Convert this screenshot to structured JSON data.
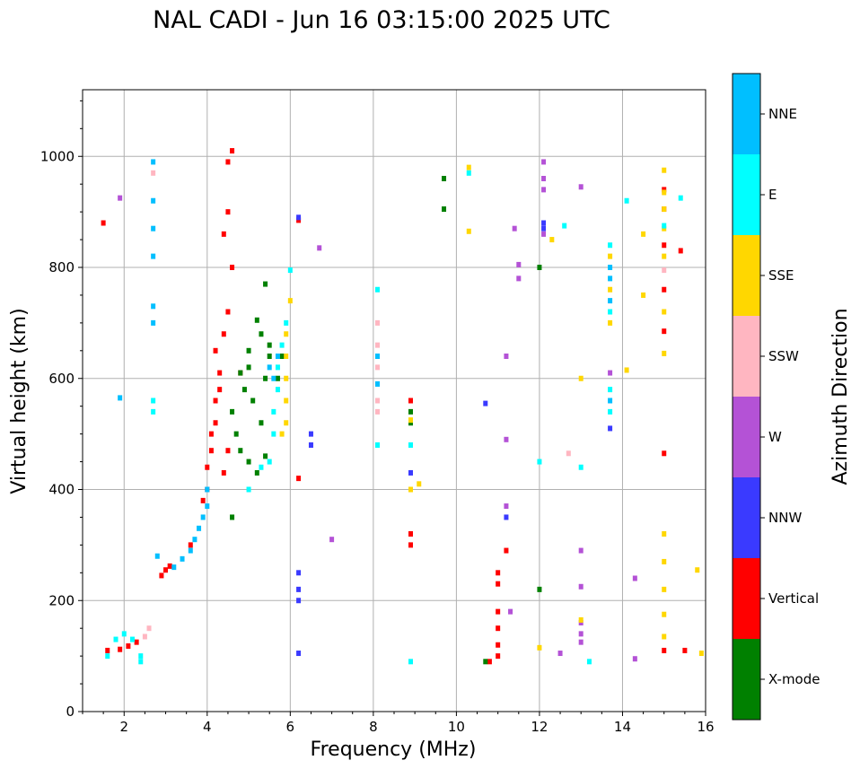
{
  "chart_data": {
    "type": "scatter",
    "title": "NAL CADI - Jun 16 03:15:00 2025 UTC",
    "xlabel": "Frequency (MHz)",
    "ylabel": "Virtual height (km)",
    "xlim": [
      1,
      16
    ],
    "ylim": [
      0,
      1120
    ],
    "xticks": [
      2,
      4,
      6,
      8,
      10,
      12,
      14,
      16
    ],
    "yticks": [
      0,
      200,
      400,
      600,
      800,
      1000
    ],
    "grid": true,
    "colorbar": {
      "title": "Azimuth Direction",
      "categories": [
        {
          "name": "X-mode",
          "color": "#008000"
        },
        {
          "name": "Vertical",
          "color": "#ff0000"
        },
        {
          "name": "NNW",
          "color": "#3a3aff"
        },
        {
          "name": "W",
          "color": "#b452d6"
        },
        {
          "name": "SSW",
          "color": "#ffb6c1"
        },
        {
          "name": "SSE",
          "color": "#ffd700"
        },
        {
          "name": "E",
          "color": "#00ffff"
        },
        {
          "name": "NNE",
          "color": "#00bfff"
        }
      ]
    },
    "series": [
      {
        "name": "Vertical",
        "points": [
          [
            1.6,
            110
          ],
          [
            1.9,
            112
          ],
          [
            2.1,
            118
          ],
          [
            2.3,
            125
          ],
          [
            2.9,
            245
          ],
          [
            3.0,
            255
          ],
          [
            3.1,
            262
          ],
          [
            3.6,
            300
          ],
          [
            3.9,
            380
          ],
          [
            4.0,
            400
          ],
          [
            4.0,
            440
          ],
          [
            4.1,
            470
          ],
          [
            4.1,
            500
          ],
          [
            4.2,
            520
          ],
          [
            4.2,
            560
          ],
          [
            4.3,
            580
          ],
          [
            4.3,
            610
          ],
          [
            4.2,
            650
          ],
          [
            4.4,
            680
          ],
          [
            4.5,
            720
          ],
          [
            4.6,
            800
          ],
          [
            4.4,
            860
          ],
          [
            4.5,
            900
          ],
          [
            4.5,
            990
          ],
          [
            4.6,
            1010
          ],
          [
            4.4,
            430
          ],
          [
            4.5,
            470
          ],
          [
            4.8,
            610
          ],
          [
            6.2,
            420
          ],
          [
            6.2,
            885
          ],
          [
            8.9,
            300
          ],
          [
            8.9,
            320
          ],
          [
            8.9,
            560
          ],
          [
            11.0,
            100
          ],
          [
            11.0,
            120
          ],
          [
            11.0,
            150
          ],
          [
            11.0,
            180
          ],
          [
            11.0,
            230
          ],
          [
            11.0,
            250
          ],
          [
            11.2,
            290
          ],
          [
            15.0,
            110
          ],
          [
            15.5,
            110
          ],
          [
            15.0,
            465
          ],
          [
            15.0,
            685
          ],
          [
            15.0,
            760
          ],
          [
            15.0,
            840
          ],
          [
            15.0,
            905
          ],
          [
            15.0,
            940
          ],
          [
            15.4,
            830
          ],
          [
            1.5,
            880
          ],
          [
            10.8,
            90
          ]
        ]
      },
      {
        "name": "X-mode",
        "points": [
          [
            4.6,
            540
          ],
          [
            4.7,
            500
          ],
          [
            4.8,
            470
          ],
          [
            5.0,
            450
          ],
          [
            5.2,
            430
          ],
          [
            5.4,
            460
          ],
          [
            4.9,
            580
          ],
          [
            5.0,
            620
          ],
          [
            5.1,
            560
          ],
          [
            5.3,
            520
          ],
          [
            5.4,
            600
          ],
          [
            5.5,
            640
          ],
          [
            5.3,
            680
          ],
          [
            5.7,
            600
          ],
          [
            5.5,
            660
          ],
          [
            5.8,
            640
          ],
          [
            4.6,
            350
          ],
          [
            4.8,
            610
          ],
          [
            5.0,
            650
          ],
          [
            5.2,
            705
          ],
          [
            5.4,
            770
          ],
          [
            8.9,
            540
          ],
          [
            8.9,
            520
          ],
          [
            9.7,
            960
          ],
          [
            9.7,
            905
          ],
          [
            10.7,
            90
          ],
          [
            12.0,
            800
          ],
          [
            12.0,
            220
          ]
        ]
      },
      {
        "name": "NNW",
        "points": [
          [
            6.2,
            890
          ],
          [
            6.2,
            250
          ],
          [
            6.2,
            220
          ],
          [
            6.2,
            200
          ],
          [
            6.2,
            105
          ],
          [
            6.5,
            500
          ],
          [
            6.5,
            480
          ],
          [
            8.9,
            480
          ],
          [
            8.9,
            430
          ],
          [
            10.7,
            555
          ],
          [
            11.2,
            350
          ],
          [
            12.1,
            870
          ],
          [
            12.1,
            880
          ],
          [
            13.7,
            510
          ]
        ]
      },
      {
        "name": "W",
        "points": [
          [
            1.9,
            925
          ],
          [
            12.1,
            990
          ],
          [
            12.1,
            960
          ],
          [
            12.1,
            940
          ],
          [
            12.1,
            860
          ],
          [
            13.0,
            945
          ],
          [
            13.0,
            290
          ],
          [
            13.0,
            225
          ],
          [
            13.0,
            160
          ],
          [
            13.0,
            140
          ],
          [
            13.0,
            125
          ],
          [
            13.7,
            610
          ],
          [
            11.2,
            640
          ],
          [
            11.2,
            490
          ],
          [
            11.2,
            370
          ],
          [
            11.3,
            180
          ],
          [
            12.5,
            105
          ],
          [
            14.3,
            240
          ],
          [
            14.3,
            95
          ],
          [
            6.7,
            835
          ],
          [
            7.0,
            310
          ],
          [
            11.5,
            780
          ],
          [
            11.5,
            805
          ],
          [
            11.4,
            870
          ]
        ]
      },
      {
        "name": "SSW",
        "points": [
          [
            2.5,
            135
          ],
          [
            2.6,
            150
          ],
          [
            2.7,
            970
          ],
          [
            8.1,
            700
          ],
          [
            8.1,
            660
          ],
          [
            8.1,
            620
          ],
          [
            8.1,
            560
          ],
          [
            8.1,
            540
          ],
          [
            12.7,
            465
          ],
          [
            15.0,
            795
          ]
        ]
      },
      {
        "name": "SSE",
        "points": [
          [
            5.9,
            680
          ],
          [
            5.9,
            640
          ],
          [
            5.9,
            600
          ],
          [
            5.9,
            560
          ],
          [
            5.9,
            520
          ],
          [
            6.0,
            740
          ],
          [
            5.8,
            500
          ],
          [
            8.9,
            400
          ],
          [
            8.9,
            525
          ],
          [
            9.1,
            410
          ],
          [
            10.3,
            980
          ],
          [
            10.3,
            865
          ],
          [
            13.0,
            600
          ],
          [
            13.0,
            165
          ],
          [
            13.7,
            820
          ],
          [
            13.7,
            760
          ],
          [
            13.7,
            700
          ],
          [
            14.1,
            615
          ],
          [
            14.5,
            860
          ],
          [
            14.5,
            750
          ],
          [
            15.0,
            975
          ],
          [
            15.0,
            935
          ],
          [
            15.0,
            905
          ],
          [
            15.0,
            870
          ],
          [
            15.0,
            820
          ],
          [
            15.0,
            720
          ],
          [
            15.0,
            645
          ],
          [
            15.0,
            320
          ],
          [
            15.0,
            270
          ],
          [
            15.0,
            220
          ],
          [
            15.0,
            175
          ],
          [
            15.0,
            135
          ],
          [
            15.8,
            255
          ],
          [
            15.9,
            105
          ],
          [
            12.3,
            850
          ],
          [
            12.0,
            115
          ]
        ]
      },
      {
        "name": "E",
        "points": [
          [
            1.6,
            100
          ],
          [
            1.8,
            130
          ],
          [
            2.0,
            140
          ],
          [
            2.2,
            130
          ],
          [
            2.4,
            100
          ],
          [
            2.7,
            540
          ],
          [
            2.7,
            560
          ],
          [
            5.0,
            400
          ],
          [
            5.3,
            440
          ],
          [
            5.5,
            450
          ],
          [
            5.6,
            500
          ],
          [
            5.6,
            540
          ],
          [
            5.7,
            580
          ],
          [
            5.7,
            620
          ],
          [
            5.8,
            660
          ],
          [
            5.9,
            700
          ],
          [
            6.0,
            795
          ],
          [
            8.1,
            760
          ],
          [
            8.1,
            480
          ],
          [
            8.9,
            90
          ],
          [
            8.9,
            480
          ],
          [
            10.3,
            970
          ],
          [
            12.0,
            450
          ],
          [
            12.6,
            875
          ],
          [
            13.0,
            440
          ],
          [
            13.2,
            90
          ],
          [
            13.7,
            580
          ],
          [
            13.7,
            540
          ],
          [
            13.7,
            720
          ],
          [
            13.7,
            840
          ],
          [
            14.1,
            920
          ],
          [
            15.0,
            875
          ],
          [
            15.4,
            925
          ],
          [
            2.4,
            90
          ]
        ]
      },
      {
        "name": "NNE",
        "points": [
          [
            2.7,
            990
          ],
          [
            2.7,
            920
          ],
          [
            2.7,
            870
          ],
          [
            2.7,
            820
          ],
          [
            2.7,
            730
          ],
          [
            2.7,
            700
          ],
          [
            2.8,
            280
          ],
          [
            3.2,
            260
          ],
          [
            3.4,
            275
          ],
          [
            3.6,
            290
          ],
          [
            3.7,
            310
          ],
          [
            3.8,
            330
          ],
          [
            3.9,
            350
          ],
          [
            4.0,
            370
          ],
          [
            4.0,
            400
          ],
          [
            5.5,
            620
          ],
          [
            5.6,
            600
          ],
          [
            5.7,
            640
          ],
          [
            1.9,
            565
          ],
          [
            8.1,
            590
          ],
          [
            8.1,
            640
          ],
          [
            13.7,
            780
          ],
          [
            13.7,
            800
          ],
          [
            13.7,
            740
          ],
          [
            13.7,
            560
          ]
        ]
      }
    ]
  }
}
